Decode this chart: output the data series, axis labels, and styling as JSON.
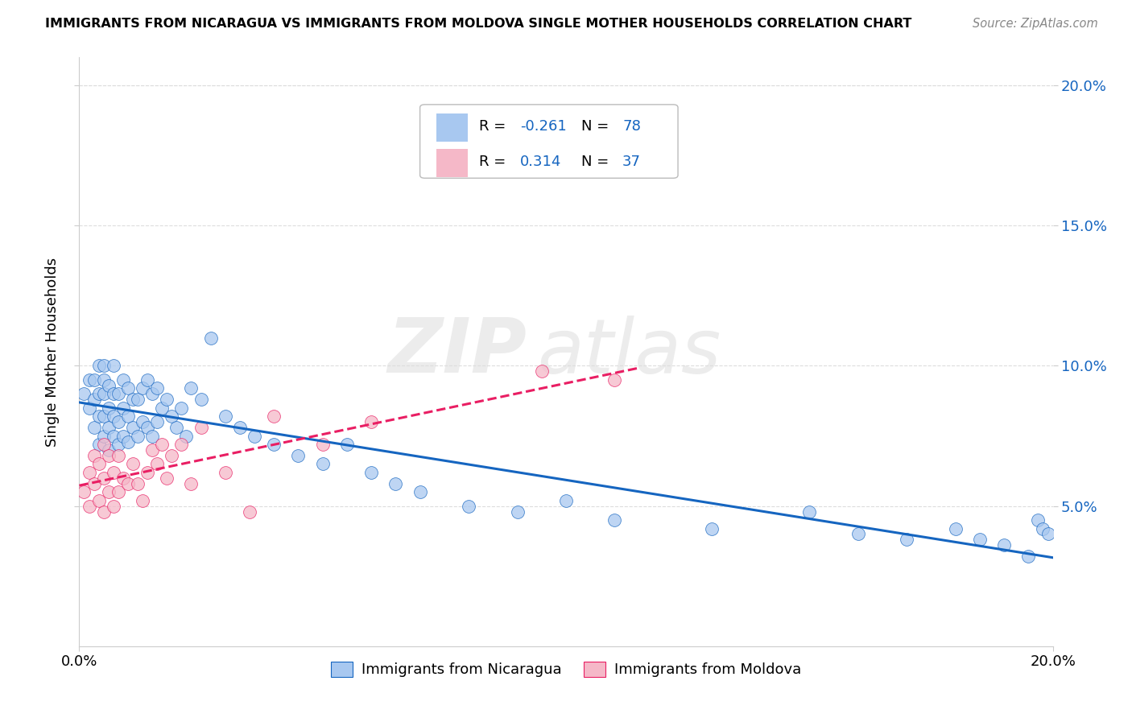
{
  "title": "IMMIGRANTS FROM NICARAGUA VS IMMIGRANTS FROM MOLDOVA SINGLE MOTHER HOUSEHOLDS CORRELATION CHART",
  "source": "Source: ZipAtlas.com",
  "ylabel": "Single Mother Households",
  "xlim": [
    0.0,
    0.2
  ],
  "ylim": [
    0.0,
    0.21
  ],
  "yticks": [
    0.05,
    0.1,
    0.15,
    0.2
  ],
  "ytick_labels": [
    "5.0%",
    "10.0%",
    "15.0%",
    "20.0%"
  ],
  "legend_R_nicaragua": "-0.261",
  "legend_N_nicaragua": "78",
  "legend_R_moldova": "0.314",
  "legend_N_moldova": "37",
  "color_nicaragua": "#A8C8F0",
  "color_moldova": "#F5B8C8",
  "line_color_nicaragua": "#1565C0",
  "line_color_moldova": "#E91E63",
  "background_color": "#FFFFFF",
  "grid_color": "#DDDDDD",
  "nicaragua_x": [
    0.001,
    0.002,
    0.002,
    0.003,
    0.003,
    0.003,
    0.004,
    0.004,
    0.004,
    0.004,
    0.005,
    0.005,
    0.005,
    0.005,
    0.005,
    0.006,
    0.006,
    0.006,
    0.006,
    0.007,
    0.007,
    0.007,
    0.007,
    0.008,
    0.008,
    0.008,
    0.009,
    0.009,
    0.009,
    0.01,
    0.01,
    0.01,
    0.011,
    0.011,
    0.012,
    0.012,
    0.013,
    0.013,
    0.014,
    0.014,
    0.015,
    0.015,
    0.016,
    0.016,
    0.017,
    0.018,
    0.019,
    0.02,
    0.021,
    0.022,
    0.023,
    0.025,
    0.027,
    0.03,
    0.033,
    0.036,
    0.04,
    0.045,
    0.05,
    0.055,
    0.06,
    0.065,
    0.07,
    0.08,
    0.09,
    0.1,
    0.11,
    0.13,
    0.15,
    0.16,
    0.17,
    0.18,
    0.185,
    0.19,
    0.195,
    0.197,
    0.198,
    0.199
  ],
  "nicaragua_y": [
    0.09,
    0.085,
    0.095,
    0.078,
    0.088,
    0.095,
    0.072,
    0.082,
    0.09,
    0.1,
    0.075,
    0.082,
    0.09,
    0.095,
    0.1,
    0.07,
    0.078,
    0.085,
    0.093,
    0.075,
    0.082,
    0.09,
    0.1,
    0.072,
    0.08,
    0.09,
    0.075,
    0.085,
    0.095,
    0.073,
    0.082,
    0.092,
    0.078,
    0.088,
    0.075,
    0.088,
    0.08,
    0.092,
    0.078,
    0.095,
    0.075,
    0.09,
    0.08,
    0.092,
    0.085,
    0.088,
    0.082,
    0.078,
    0.085,
    0.075,
    0.092,
    0.088,
    0.11,
    0.082,
    0.078,
    0.075,
    0.072,
    0.068,
    0.065,
    0.072,
    0.062,
    0.058,
    0.055,
    0.05,
    0.048,
    0.052,
    0.045,
    0.042,
    0.048,
    0.04,
    0.038,
    0.042,
    0.038,
    0.036,
    0.032,
    0.045,
    0.042,
    0.04
  ],
  "moldova_x": [
    0.001,
    0.002,
    0.002,
    0.003,
    0.003,
    0.004,
    0.004,
    0.005,
    0.005,
    0.005,
    0.006,
    0.006,
    0.007,
    0.007,
    0.008,
    0.008,
    0.009,
    0.01,
    0.011,
    0.012,
    0.013,
    0.014,
    0.015,
    0.016,
    0.017,
    0.018,
    0.019,
    0.021,
    0.023,
    0.025,
    0.03,
    0.035,
    0.04,
    0.05,
    0.06,
    0.095,
    0.11
  ],
  "moldova_y": [
    0.055,
    0.062,
    0.05,
    0.058,
    0.068,
    0.052,
    0.065,
    0.048,
    0.06,
    0.072,
    0.055,
    0.068,
    0.05,
    0.062,
    0.055,
    0.068,
    0.06,
    0.058,
    0.065,
    0.058,
    0.052,
    0.062,
    0.07,
    0.065,
    0.072,
    0.06,
    0.068,
    0.072,
    0.058,
    0.078,
    0.062,
    0.048,
    0.082,
    0.072,
    0.08,
    0.098,
    0.095
  ]
}
